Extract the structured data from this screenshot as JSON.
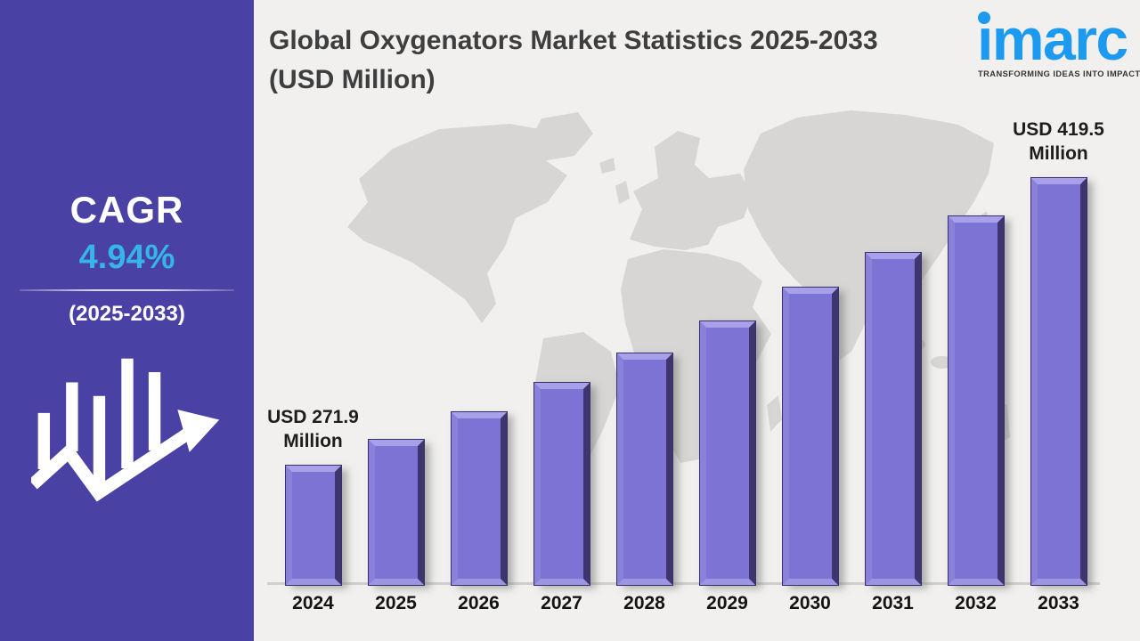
{
  "title": "Global Oxygenators Market Statistics 2025-2033 (USD Million)",
  "sidebar": {
    "cagr_label": "CAGR",
    "cagr_value": "4.94%",
    "cagr_period": "(2025-2033)"
  },
  "logo": {
    "brand": "imarc",
    "tagline": "TRANSFORMING IDEAS INTO IMPACT"
  },
  "colors": {
    "sidebar_bg": "#4a41a5",
    "cagr_accent": "#35b5ea",
    "bar_fill": "#7c73d4",
    "bar_bevel_light": "#a8a1e9",
    "bar_bevel_dark": "#3e356e",
    "imarc_blue": "#1b9af0",
    "panel_bg": "#f1f0ef",
    "map_gray": "#d7d6d5",
    "title_text": "#3e3e3e"
  },
  "chart_data": {
    "type": "bar",
    "title": "Global Oxygenators Market Statistics 2025-2033 (USD Million)",
    "categories": [
      "2024",
      "2025",
      "2026",
      "2027",
      "2028",
      "2029",
      "2030",
      "2031",
      "2032",
      "2033"
    ],
    "values": [
      271.9,
      285.3,
      299.4,
      314.2,
      329.7,
      346.0,
      363.1,
      381.0,
      399.8,
      419.5
    ],
    "unit": "USD Million",
    "data_labels": {
      "2024": "USD 271.9 Million",
      "2033": "USD 419.5 Million"
    },
    "cagr": "4.94%",
    "cagr_period": "2025-2033",
    "xlabel": "",
    "ylabel": "",
    "ylim": [
      250,
      430
    ],
    "grid": false,
    "legend": false
  }
}
